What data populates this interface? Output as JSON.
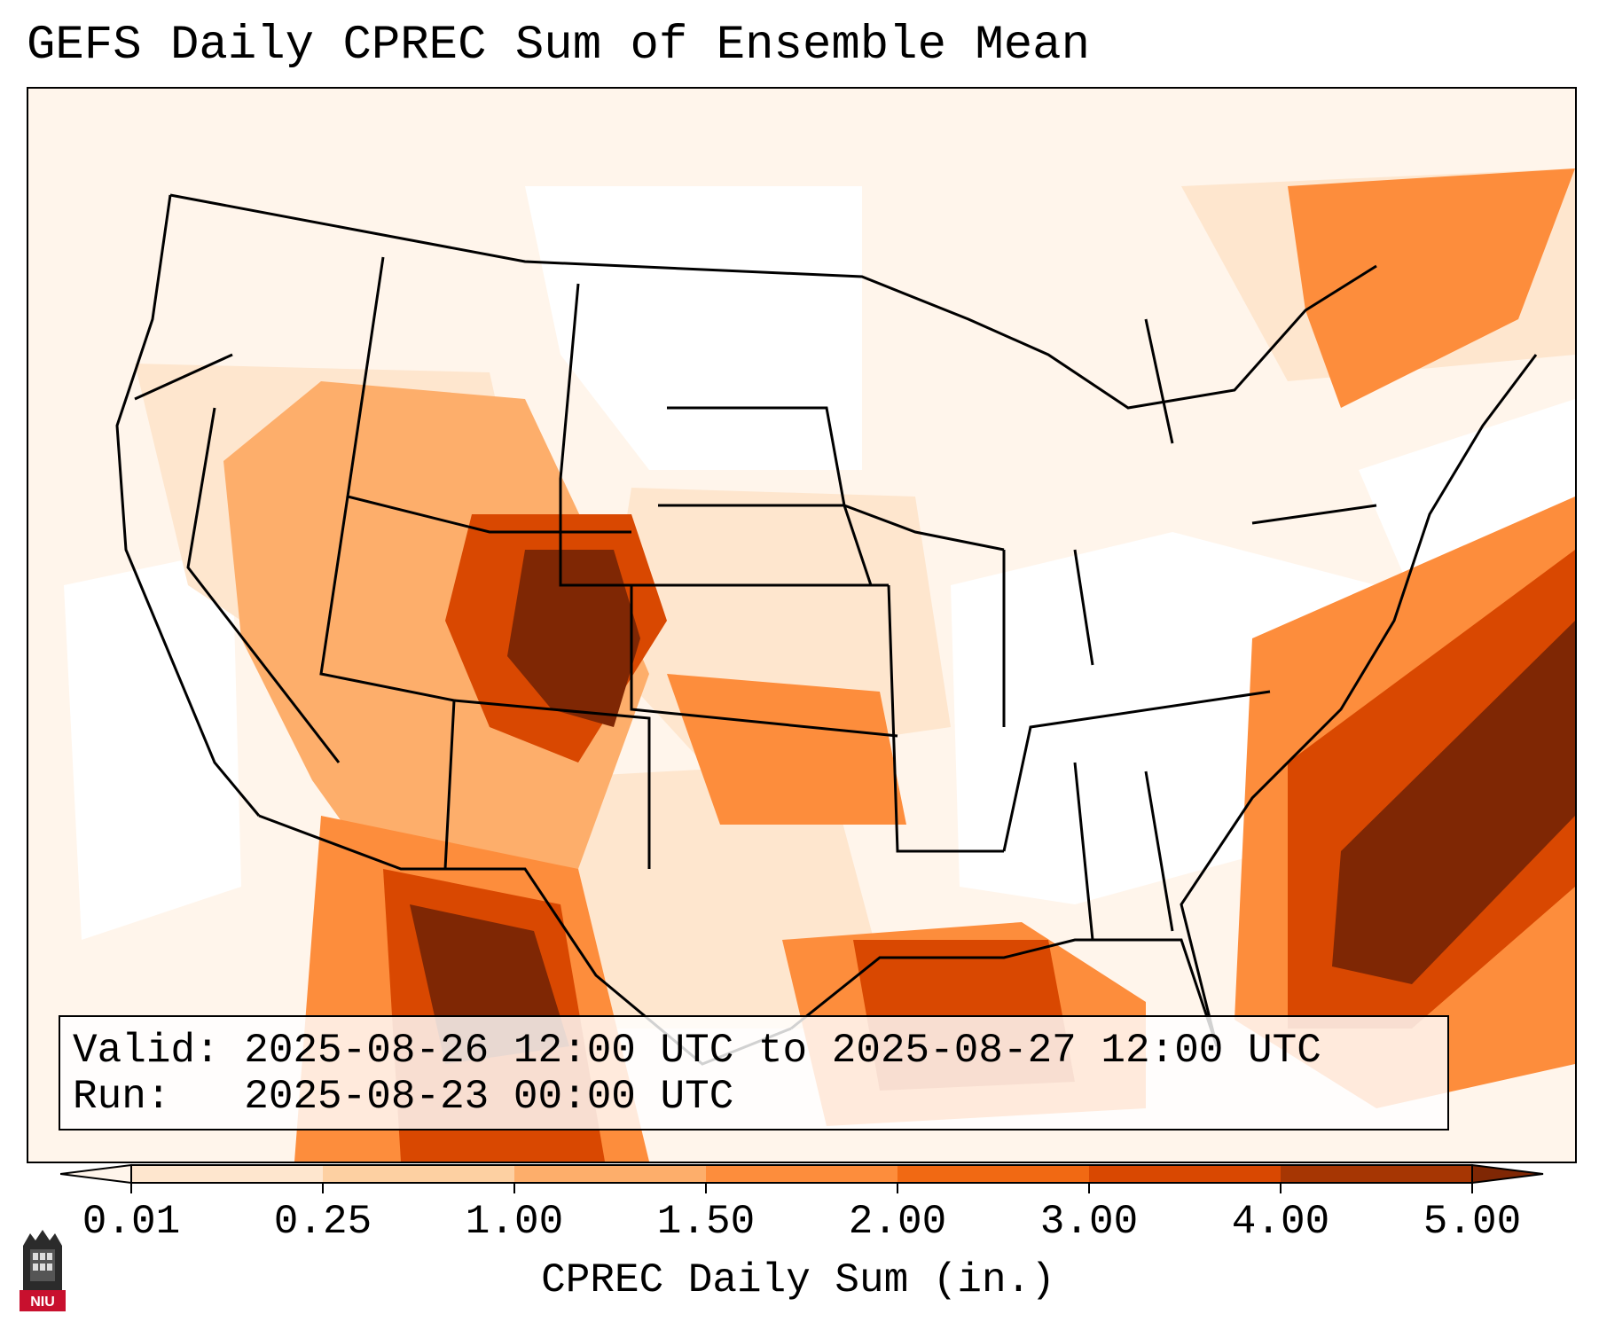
{
  "title": "GEFS Daily CPREC Sum of Ensemble Mean",
  "info": {
    "valid_line": "Valid: 2025-08-26 12:00 UTC to 2025-08-27 12:00 UTC",
    "run_line": "Run:   2025-08-23 00:00 UTC"
  },
  "colorbar": {
    "label": "CPREC Daily Sum (in.)",
    "ticks": [
      "0.01",
      "0.25",
      "1.00",
      "1.50",
      "2.00",
      "3.00",
      "4.00",
      "5.00"
    ],
    "colors": [
      "#fff5eb",
      "#fee6ce",
      "#fdd0a2",
      "#fdae6b",
      "#fd8d3c",
      "#f16913",
      "#d94801",
      "#a63603",
      "#7f2704"
    ]
  },
  "logo": {
    "text": "NIU"
  }
}
